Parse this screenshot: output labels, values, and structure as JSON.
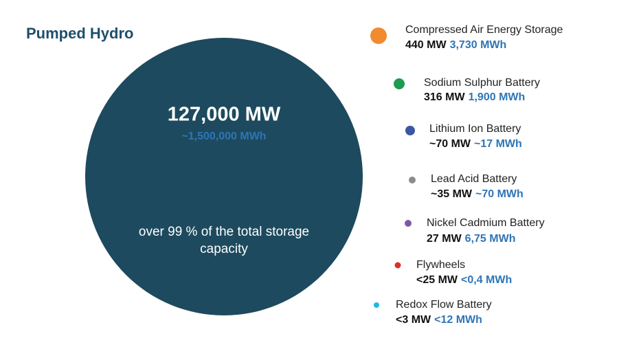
{
  "title": "Pumped Hydro",
  "main": {
    "power": "127,000 MW",
    "energy": "~1,500,000 MWh",
    "share_line1": "over 99 % of the total storage",
    "share_line2": "capacity",
    "color": "#1d4a5e",
    "energy_color": "#2e75b6"
  },
  "items": [
    {
      "name": "Compressed Air Energy Storage",
      "power": "440 MW",
      "energy": "3,730 MWh",
      "color": "#f28a30"
    },
    {
      "name": "Sodium Sulphur Battery",
      "power": "316 MW",
      "energy": "1,900 MWh",
      "color": "#1e9b4e"
    },
    {
      "name": "Lithium Ion Battery",
      "power": "~70 MW",
      "energy": "~17 MWh",
      "color": "#3a56a5"
    },
    {
      "name": "Lead Acid Battery",
      "power": "~35 MW",
      "energy": "~70 MWh",
      "color": "#8c8c8c"
    },
    {
      "name": "Nickel Cadmium Battery",
      "power": "27 MW",
      "energy": "6,75 MWh",
      "color": "#7a5aa6"
    },
    {
      "name": "Flywheels",
      "power": "<25 MW",
      "energy": "<0,4 MWh",
      "color": "#d9312b"
    },
    {
      "name": "Redox Flow Battery",
      "power": "<3 MW",
      "energy": "<12 MWh",
      "color": "#1fb8e8"
    }
  ]
}
